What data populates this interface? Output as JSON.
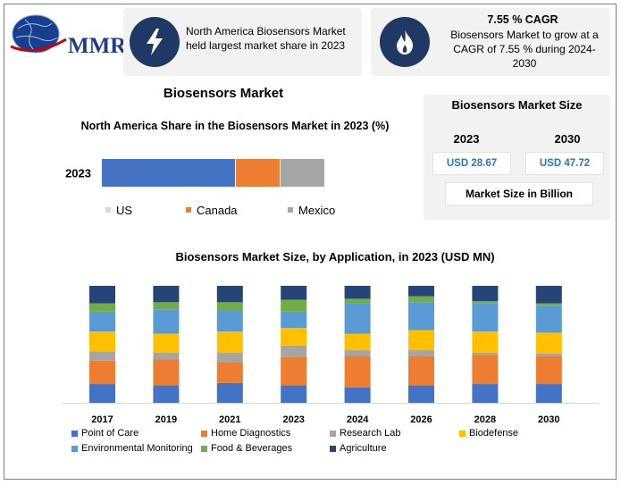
{
  "brand": {
    "logo_text": "MMR"
  },
  "card1": {
    "text": "North America Biosensors Market held largest market share in 2023"
  },
  "card2": {
    "title": "7.55 % CAGR",
    "text": "Biosensors Market to grow at a CAGR of 7.55 % during 2024-2030"
  },
  "market_title": "Biosensors Market",
  "market_size": {
    "title": "Biosensors Market Size",
    "year1": "2023",
    "value1": "USD 28.67",
    "year2": "2030",
    "value2": "USD 47.72",
    "unit_label": "Market Size in Billion"
  },
  "colors": {
    "navy": "#1f3864",
    "us": "#4472c4",
    "canada": "#ed7d31",
    "mexico": "#a5a5a5",
    "point_of_care": "#4472c4",
    "home_diagnostics": "#ed7d31",
    "research_lab": "#a5a5a5",
    "biodefense": "#ffc000",
    "environmental": "#5b9bd5",
    "food": "#70ad47",
    "agriculture": "#264478"
  },
  "chart_data": [
    {
      "type": "bar",
      "orientation": "horizontal-stacked",
      "title": "North America Share in the Biosensors Market in 2023 (%)",
      "categories": [
        "2023"
      ],
      "series": [
        {
          "name": "US",
          "values": [
            60
          ],
          "color": "#4472c4"
        },
        {
          "name": "Canada",
          "values": [
            20
          ],
          "color": "#ed7d31"
        },
        {
          "name": "Mexico",
          "values": [
            20
          ],
          "color": "#a5a5a5"
        }
      ],
      "legend": "bottom"
    },
    {
      "type": "bar",
      "orientation": "vertical-stacked",
      "title": "Biosensors Market Size, by Application, in 2023 (USD MN)",
      "categories": [
        "2017",
        "2019",
        "2021",
        "2023",
        "2024",
        "2026",
        "2028",
        "2030"
      ],
      "series": [
        {
          "name": "Point of Care",
          "color": "#4472c4",
          "values": [
            16,
            15,
            17,
            15,
            13,
            15,
            16,
            16
          ]
        },
        {
          "name": "Home Diagnostics",
          "color": "#ed7d31",
          "values": [
            20,
            22,
            18,
            24,
            27,
            25,
            25,
            24
          ]
        },
        {
          "name": "Research Lab",
          "color": "#a5a5a5",
          "values": [
            8,
            6,
            8,
            10,
            5,
            5,
            2,
            2
          ]
        },
        {
          "name": "Biodefense",
          "color": "#ffc000",
          "values": [
            17,
            16,
            18,
            15,
            14,
            17,
            18,
            18
          ]
        },
        {
          "name": "Environmental Monitoring",
          "color": "#5b9bd5",
          "values": [
            17,
            21,
            18,
            14,
            26,
            24,
            24,
            23
          ]
        },
        {
          "name": "Food & Beverages",
          "color": "#70ad47",
          "values": [
            7,
            6,
            7,
            10,
            4,
            5,
            2,
            2
          ]
        },
        {
          "name": "Agriculture",
          "color": "#264478",
          "values": [
            15,
            14,
            14,
            12,
            11,
            9,
            13,
            15
          ]
        }
      ],
      "legend": "bottom",
      "grid": false
    }
  ]
}
